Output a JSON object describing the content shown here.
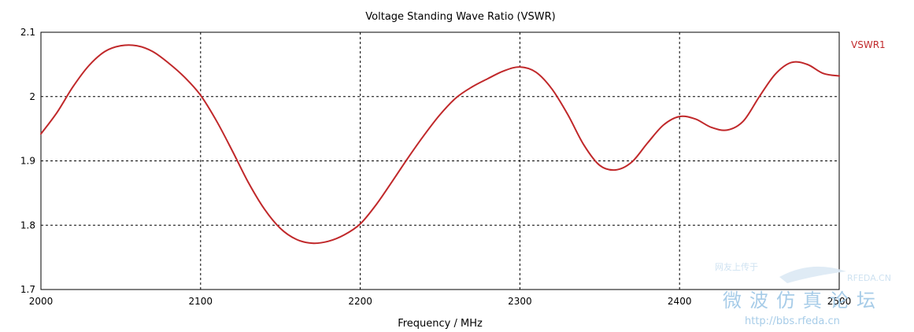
{
  "colors": {
    "series": "#c0282a",
    "legend": "#c0282a",
    "watermark_blue": "#9ec7e6",
    "watermark_light": "#c9dff0"
  },
  "chart_data": {
    "type": "line",
    "title": "Voltage Standing Wave Ratio (VSWR)",
    "xlabel": "Frequency / MHz",
    "ylabel": "",
    "xlim": [
      2000,
      2500
    ],
    "ylim": [
      1.7,
      2.1
    ],
    "x_ticks": [
      2000,
      2100,
      2200,
      2300,
      2400,
      2500
    ],
    "x_tick_labels": [
      "2000",
      "2100",
      "2200",
      "2300",
      "2400",
      "2500"
    ],
    "y_ticks": [
      1.7,
      1.8,
      1.9,
      2.0,
      2.1
    ],
    "y_tick_labels": [
      "1.7",
      "1.8",
      "1.9",
      "2",
      "2.1"
    ],
    "grid": true,
    "legend_position": "right",
    "series": [
      {
        "name": "VSWR1",
        "x": [
          2000,
          2010,
          2020,
          2030,
          2040,
          2050,
          2060,
          2070,
          2080,
          2090,
          2100,
          2110,
          2120,
          2130,
          2140,
          2150,
          2160,
          2170,
          2180,
          2190,
          2200,
          2210,
          2220,
          2230,
          2240,
          2250,
          2260,
          2270,
          2280,
          2290,
          2300,
          2310,
          2320,
          2330,
          2340,
          2350,
          2360,
          2370,
          2380,
          2390,
          2400,
          2410,
          2420,
          2430,
          2440,
          2450,
          2460,
          2470,
          2480,
          2490,
          2500
        ],
        "y": [
          1.942,
          1.975,
          2.015,
          2.048,
          2.07,
          2.079,
          2.079,
          2.07,
          2.052,
          2.03,
          2.002,
          1.962,
          1.915,
          1.866,
          1.825,
          1.795,
          1.778,
          1.772,
          1.775,
          1.785,
          1.802,
          1.832,
          1.868,
          1.905,
          1.94,
          1.972,
          1.998,
          2.015,
          2.028,
          2.04,
          2.046,
          2.038,
          2.012,
          1.972,
          1.925,
          1.893,
          1.886,
          1.898,
          1.928,
          1.956,
          1.969,
          1.965,
          1.952,
          1.948,
          1.962,
          2.0,
          2.035,
          2.053,
          2.05,
          2.036,
          2.032
        ]
      }
    ]
  },
  "watermark": {
    "brand": "RFEDA.CN",
    "tagline": "网友上传于",
    "forum": "微波仿真论坛",
    "url": "http://bbs.rfeda.cn"
  }
}
